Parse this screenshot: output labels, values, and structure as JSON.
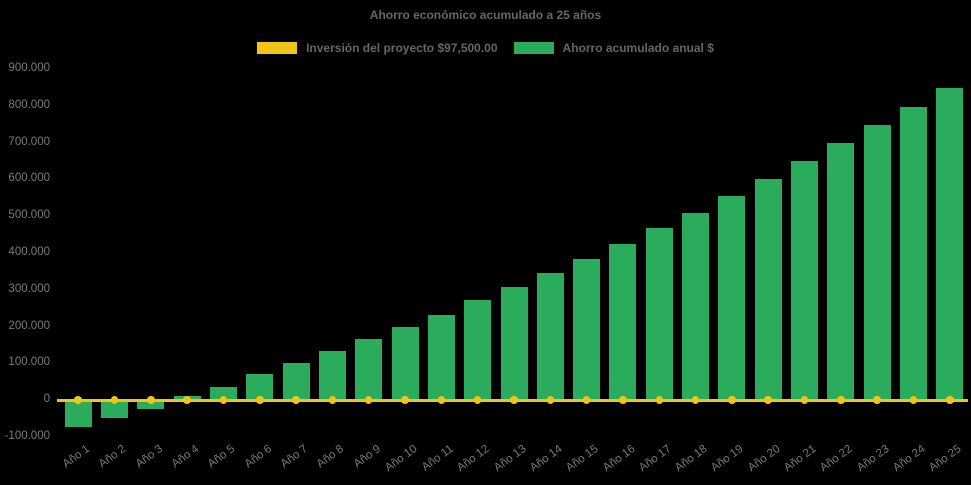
{
  "chart_data": {
    "type": "bar",
    "title": "Ahorro económico acumulado a 25 años",
    "background_color": "#000000",
    "title_color": "#666666",
    "axis_label_color": "#7a7a7a",
    "legend_position": "top",
    "grid": false,
    "categories": [
      "Año 1",
      "Año 2",
      "Año 3",
      "Año 4",
      "Año 5",
      "Año 6",
      "Año 7",
      "Año 8",
      "Año 9",
      "Año 10",
      "Año 11",
      "Año 12",
      "Año 13",
      "Año 14",
      "Año 15",
      "Año 16",
      "Año 17",
      "Año 18",
      "Año 19",
      "Año 20",
      "Año 21",
      "Año 22",
      "Año 23",
      "Año 24",
      "Año 25"
    ],
    "series": [
      {
        "name": "Inversión del proyecto $97,500.00",
        "type": "line",
        "color": "#F0C419",
        "values": [
          0,
          0,
          0,
          0,
          0,
          0,
          0,
          0,
          0,
          0,
          0,
          0,
          0,
          0,
          0,
          0,
          0,
          0,
          0,
          0,
          0,
          0,
          0,
          0,
          0
        ]
      },
      {
        "name": "Ahorro acumulado anual $",
        "type": "bar",
        "color": "#2BAC5C",
        "values": [
          -75000,
          -51000,
          -26000,
          8000,
          33000,
          68000,
          99000,
          131000,
          163000,
          195000,
          230000,
          269000,
          304000,
          342000,
          382000,
          423000,
          465000,
          507000,
          552000,
          598000,
          646000,
          695000,
          744000,
          795000,
          845000
        ]
      }
    ],
    "ylim": [
      -100000,
      900000
    ],
    "ytick_step": 100000,
    "yticks": [
      {
        "label": "900.000",
        "value": 900000
      },
      {
        "label": "800.000",
        "value": 800000
      },
      {
        "label": "700.000",
        "value": 700000
      },
      {
        "label": "600.000",
        "value": 600000
      },
      {
        "label": "500.000",
        "value": 500000
      },
      {
        "label": "400.000",
        "value": 400000
      },
      {
        "label": "300.000",
        "value": 300000
      },
      {
        "label": "200.000",
        "value": 200000
      },
      {
        "label": "100.000",
        "value": 100000
      },
      {
        "label": "0",
        "value": 0
      },
      {
        "label": "-100.000",
        "value": -100000
      }
    ],
    "xlabel": "",
    "ylabel": ""
  }
}
